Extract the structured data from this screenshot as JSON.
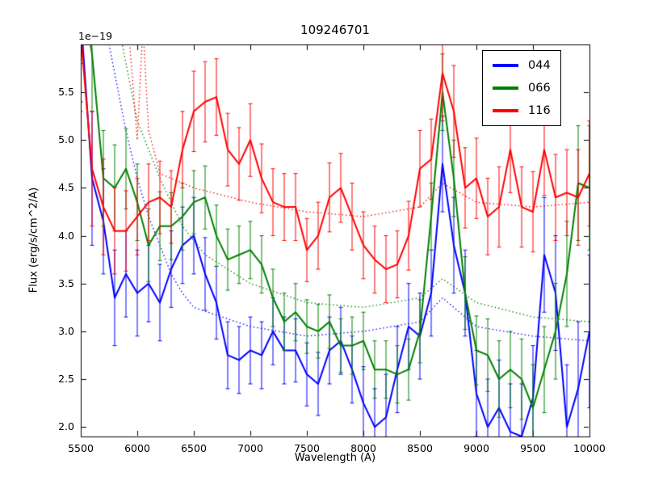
{
  "figure": {
    "title": "109246701",
    "offset_text": "1e−19",
    "xlabel": "Wavelength (A)",
    "ylabel": "Flux (erg/s/cm^2/A)"
  },
  "legend": {
    "position": "upper right",
    "items": [
      {
        "label": "044",
        "color": "#0000ff"
      },
      {
        "label": "066",
        "color": "#008000"
      },
      {
        "label": "116",
        "color": "#ff0000"
      }
    ]
  },
  "chart_data": {
    "type": "line",
    "title": "109246701",
    "xlabel": "Wavelength (A)",
    "ylabel": "Flux (erg/s/cm^2/A)",
    "y_scale_factor": "1e-19",
    "grid": false,
    "legend_position": "upper right",
    "xlim": [
      5500,
      10000
    ],
    "ylim": [
      1.9,
      6.0
    ],
    "x_ticks": [
      5500,
      6000,
      6500,
      7000,
      7500,
      8000,
      8500,
      9000,
      9500,
      10000
    ],
    "y_ticks": [
      2.0,
      2.5,
      3.0,
      3.5,
      4.0,
      4.5,
      5.0,
      5.5
    ],
    "x": [
      5500,
      5600,
      5700,
      5800,
      5900,
      6000,
      6100,
      6200,
      6300,
      6400,
      6500,
      6600,
      6700,
      6800,
      6900,
      7000,
      7100,
      7200,
      7300,
      7400,
      7500,
      7600,
      7700,
      7800,
      7900,
      8000,
      8100,
      8200,
      8300,
      8400,
      8500,
      8600,
      8700,
      8800,
      8900,
      9000,
      9100,
      9200,
      9300,
      9400,
      9500,
      9600,
      9700,
      9800,
      9900,
      10000
    ],
    "series": [
      {
        "name": "044",
        "color": "#0000ff",
        "style": "solid",
        "values": [
          6.3,
          4.6,
          4.15,
          3.35,
          3.6,
          3.4,
          3.5,
          3.3,
          3.65,
          3.9,
          4.0,
          3.6,
          3.3,
          2.75,
          2.7,
          2.8,
          2.75,
          3.0,
          2.8,
          2.8,
          2.55,
          2.45,
          2.8,
          2.9,
          2.6,
          2.25,
          2.0,
          2.1,
          2.6,
          3.05,
          2.95,
          3.4,
          4.75,
          3.9,
          3.4,
          2.35,
          2.0,
          2.2,
          1.95,
          1.9,
          2.3,
          3.8,
          3.4,
          2.0,
          2.4,
          3.0
        ],
        "errors": [
          0.9,
          0.7,
          0.55,
          0.5,
          0.45,
          0.45,
          0.4,
          0.4,
          0.4,
          0.4,
          0.4,
          0.38,
          0.38,
          0.35,
          0.35,
          0.35,
          0.35,
          0.35,
          0.35,
          0.33,
          0.33,
          0.33,
          0.35,
          0.35,
          0.35,
          0.38,
          0.4,
          0.45,
          0.45,
          0.45,
          0.45,
          0.45,
          0.5,
          0.5,
          0.45,
          0.45,
          0.5,
          0.5,
          0.5,
          0.55,
          0.55,
          0.6,
          0.6,
          0.65,
          0.7,
          0.8
        ]
      },
      {
        "name": "066",
        "color": "#008000",
        "style": "solid",
        "values": [
          6.6,
          5.9,
          4.6,
          4.5,
          4.7,
          4.35,
          3.9,
          4.1,
          4.1,
          4.2,
          4.35,
          4.4,
          4.0,
          3.75,
          3.8,
          3.85,
          3.7,
          3.35,
          3.1,
          3.2,
          3.05,
          3.0,
          3.1,
          2.85,
          2.85,
          2.9,
          2.6,
          2.6,
          2.55,
          2.6,
          3.0,
          4.2,
          5.5,
          4.6,
          3.4,
          2.8,
          2.75,
          2.5,
          2.6,
          2.5,
          2.2,
          2.6,
          3.0,
          3.6,
          4.55,
          4.5
        ],
        "errors": [
          0.8,
          0.6,
          0.5,
          0.45,
          0.42,
          0.4,
          0.38,
          0.36,
          0.35,
          0.35,
          0.33,
          0.33,
          0.32,
          0.32,
          0.3,
          0.3,
          0.3,
          0.3,
          0.3,
          0.3,
          0.28,
          0.28,
          0.28,
          0.28,
          0.3,
          0.3,
          0.3,
          0.3,
          0.3,
          0.32,
          0.33,
          0.35,
          0.4,
          0.4,
          0.38,
          0.36,
          0.38,
          0.4,
          0.4,
          0.42,
          0.45,
          0.45,
          0.5,
          0.55,
          0.6,
          0.65
        ]
      },
      {
        "name": "116",
        "color": "#ff0000",
        "style": "solid",
        "values": [
          6.1,
          4.7,
          4.3,
          4.05,
          4.05,
          4.2,
          4.35,
          4.4,
          4.3,
          4.9,
          5.3,
          5.4,
          5.45,
          4.9,
          4.75,
          5.0,
          4.6,
          4.35,
          4.3,
          4.3,
          3.85,
          4.0,
          4.4,
          4.5,
          4.2,
          3.9,
          3.75,
          3.65,
          3.7,
          4.0,
          4.7,
          4.8,
          5.7,
          5.3,
          4.5,
          4.6,
          4.2,
          4.3,
          4.9,
          4.3,
          4.25,
          4.9,
          4.4,
          4.45,
          4.4,
          4.65
        ],
        "errors": [
          0.8,
          0.6,
          0.5,
          0.45,
          0.42,
          0.4,
          0.4,
          0.38,
          0.38,
          0.4,
          0.42,
          0.42,
          0.4,
          0.38,
          0.38,
          0.38,
          0.36,
          0.35,
          0.35,
          0.35,
          0.33,
          0.35,
          0.36,
          0.36,
          0.35,
          0.35,
          0.35,
          0.35,
          0.35,
          0.36,
          0.4,
          0.42,
          0.5,
          0.48,
          0.42,
          0.42,
          0.4,
          0.42,
          0.45,
          0.42,
          0.42,
          0.48,
          0.45,
          0.45,
          0.5,
          0.55
        ]
      },
      {
        "name": "044-dotted-model",
        "color": "#0000ff",
        "style": "dotted",
        "x": [
          5700,
          5800,
          5900,
          6000,
          6100,
          6200,
          6300,
          6400,
          6500,
          7000,
          7500,
          8000,
          8500,
          8700,
          9000,
          9500,
          10000
        ],
        "values": [
          6.3,
          5.7,
          5.1,
          4.6,
          4.2,
          3.9,
          3.6,
          3.4,
          3.25,
          3.05,
          2.95,
          3.0,
          3.1,
          3.35,
          3.05,
          2.95,
          2.9
        ]
      },
      {
        "name": "066-dotted-model",
        "color": "#008000",
        "style": "dotted",
        "x": [
          5800,
          5900,
          6000,
          6100,
          6200,
          6300,
          6400,
          6500,
          6600,
          7000,
          7500,
          8000,
          8500,
          8700,
          9000,
          9500,
          10000
        ],
        "values": [
          6.4,
          5.8,
          5.2,
          4.9,
          4.6,
          4.35,
          4.1,
          3.95,
          3.8,
          3.5,
          3.3,
          3.25,
          3.35,
          3.55,
          3.3,
          3.15,
          3.1
        ]
      },
      {
        "name": "116-dotted-model",
        "color": "#ff0000",
        "style": "dotted",
        "x": [
          5900,
          6000,
          6050,
          6100,
          6200,
          6300,
          6500,
          7000,
          7500,
          8000,
          8500,
          8700,
          9000,
          9500,
          10000
        ],
        "values": [
          6.5,
          5.0,
          6.2,
          5.1,
          4.65,
          4.6,
          4.5,
          4.35,
          4.25,
          4.2,
          4.3,
          4.55,
          4.35,
          4.3,
          4.35
        ]
      }
    ]
  }
}
